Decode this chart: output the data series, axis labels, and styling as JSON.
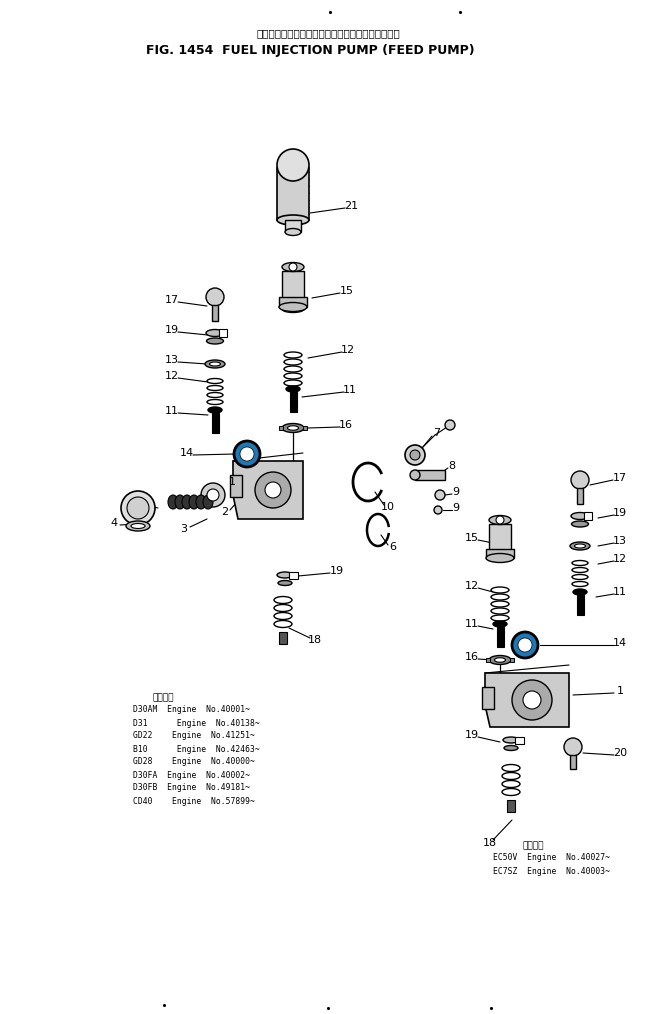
{
  "title_jp": "フェエルインジェクションポンプ　フィードポンプ",
  "title_en": "FIG. 1454  FUEL INJECTION PUMP (FEED PUMP)",
  "bg_color": "#ffffff",
  "text_color": "#000000",
  "note1_header": "適用機種",
  "note1_lines": [
    "D30AM  Engine  No.40001~",
    "D31      Engine  No.40138~",
    "GD22    Engine  No.41251~",
    "B10      Engine  No.42463~",
    "GD28    Engine  No.40000~",
    "D30FA  Engine  No.40002~",
    "D30FB  Engine  No.49181~",
    "CD40    Engine  No.57899~"
  ],
  "note2_header": "適用機種",
  "note2_lines": [
    "EC50V  Engine  No.40027~",
    "EC7SZ  Engine  No.40003~"
  ]
}
